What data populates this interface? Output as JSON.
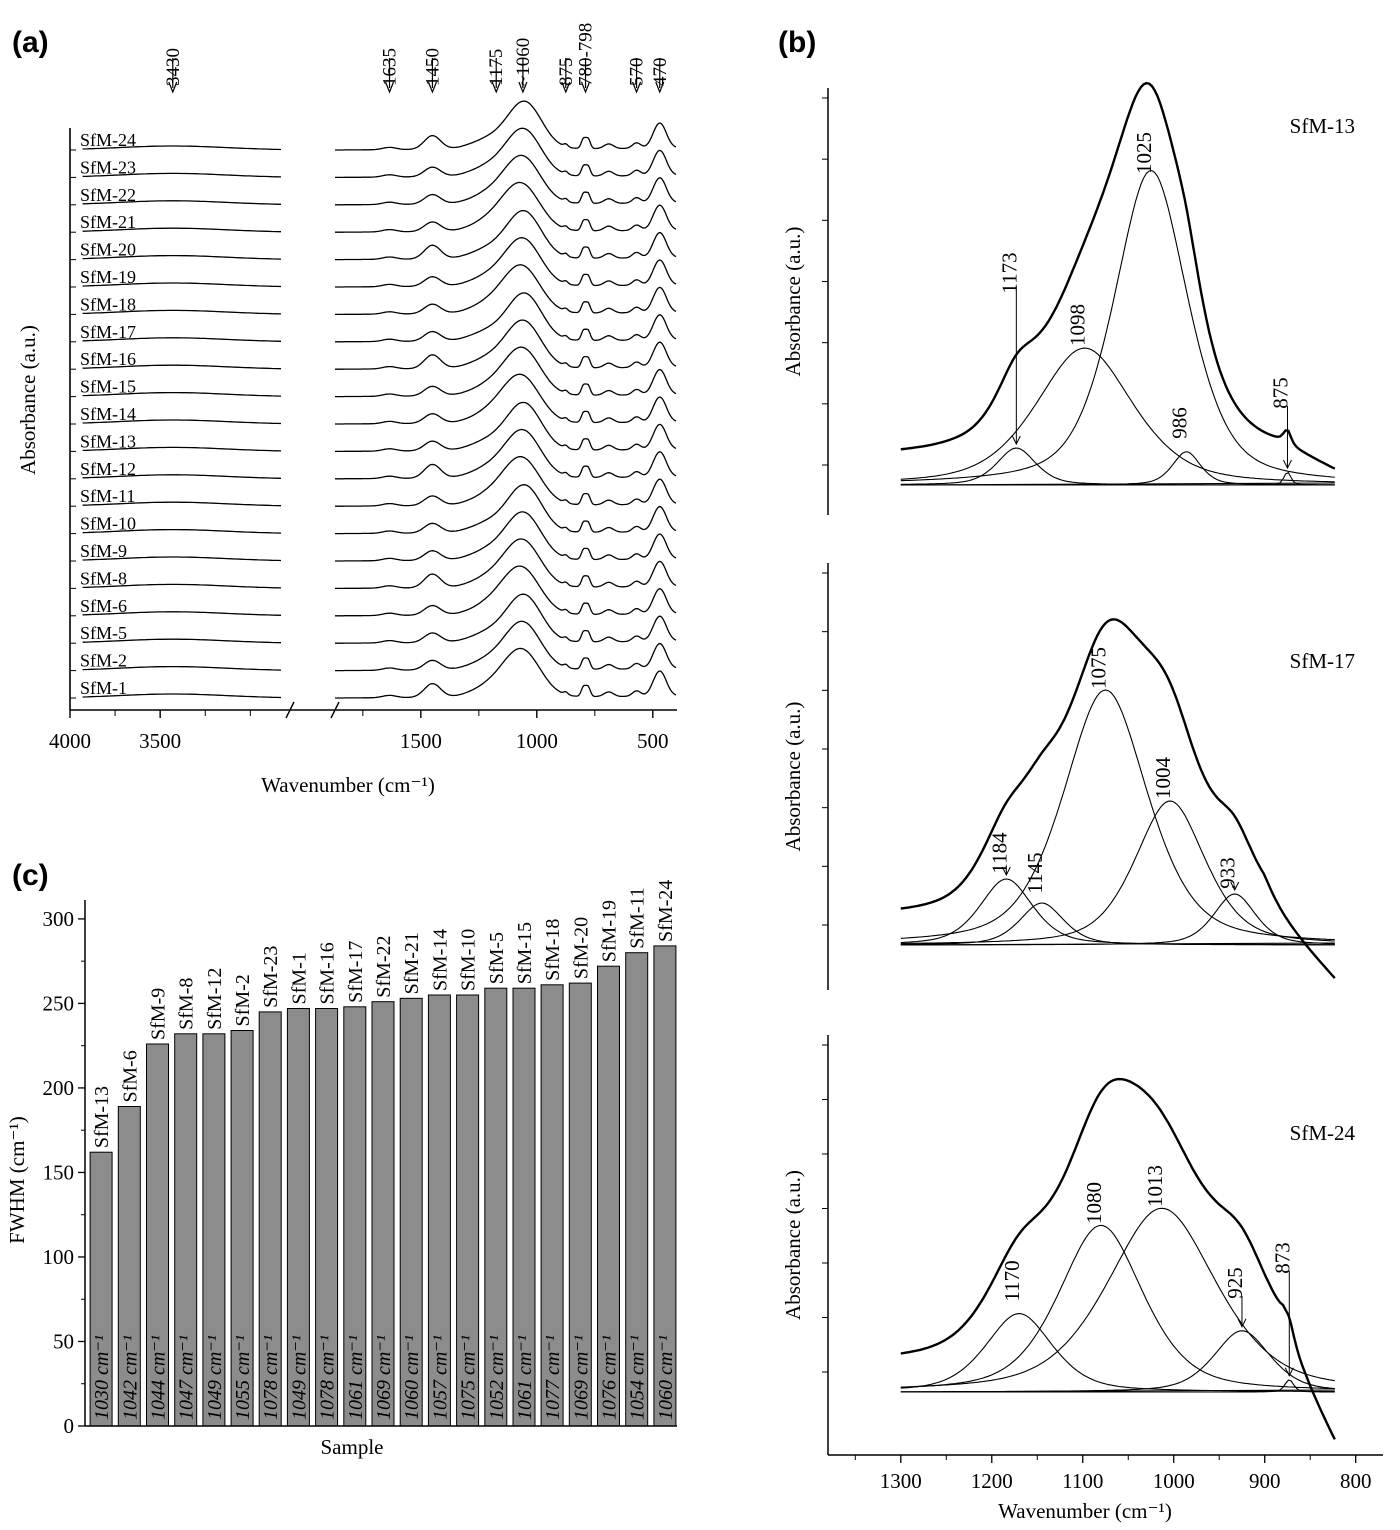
{
  "panels": [
    {
      "label": "(a)",
      "type": "line",
      "xlabel": "Wavenumber (cm⁻¹)",
      "ylabel": "Absorbance (a.u.)",
      "x_ticks": [
        "4000",
        "3500",
        "1500",
        "1000",
        "500"
      ],
      "peak_markers": [
        "3430",
        "1635",
        "1450",
        "1175",
        "~1060",
        "875",
        "780-798",
        "570",
        "470"
      ],
      "samples": [
        "SfM-24",
        "SfM-23",
        "SfM-22",
        "SfM-21",
        "SfM-20",
        "SfM-19",
        "SfM-18",
        "SfM-17",
        "SfM-16",
        "SfM-15",
        "SfM-14",
        "SfM-13",
        "SfM-12",
        "SfM-11",
        "SfM-10",
        "SfM-9",
        "SfM-8",
        "SfM-6",
        "SfM-5",
        "SfM-2",
        "SfM-1"
      ]
    },
    {
      "label": "(b)",
      "type": "line",
      "xlabel": "Wavenumber  (cm⁻¹)",
      "x_ticks": [
        "1300",
        "1200",
        "1100",
        "1000",
        "900",
        "800"
      ],
      "xlim": [
        1380,
        770
      ],
      "subplots": [
        {
          "name": "SfM-13",
          "ylabel": "Absorbance (a.u.)",
          "components": [
            1173,
            1098,
            1025,
            986,
            875
          ]
        },
        {
          "name": "SfM-17",
          "ylabel": "Absorbance (a.u.)",
          "components": [
            1184,
            1145,
            1075,
            1004,
            933
          ]
        },
        {
          "name": "SfM-24",
          "ylabel": "Absorbance (a.u.)",
          "components": [
            1170,
            1080,
            1013,
            925,
            873
          ]
        }
      ]
    }
  ],
  "chart_data": {
    "label": "(c)",
    "type": "bar",
    "xlabel": "Sample",
    "ylabel": "FWHM  (cm⁻¹)",
    "ylim": [
      0,
      310
    ],
    "y_ticks": [
      0,
      50,
      100,
      150,
      200,
      250,
      300
    ],
    "categories": [
      "SfM-13",
      "SfM-6",
      "SfM-9",
      "SfM-8",
      "SfM-12",
      "SfM-2",
      "SfM-23",
      "SfM-1",
      "SfM-16",
      "SfM-17",
      "SfM-22",
      "SfM-21",
      "SfM-14",
      "SfM-10",
      "SfM-5",
      "SfM-15",
      "SfM-18",
      "SfM-20",
      "SfM-19",
      "SfM-11",
      "SfM-24"
    ],
    "values": [
      162,
      189,
      226,
      232,
      232,
      234,
      245,
      247,
      247,
      248,
      251,
      253,
      255,
      255,
      259,
      259,
      261,
      262,
      272,
      280,
      284
    ],
    "bar_annotations": [
      "1030 cm⁻¹",
      "1042 cm⁻¹",
      "1044 cm⁻¹",
      "1047 cm⁻¹",
      "1049 cm⁻¹",
      "1055 cm⁻¹",
      "1078 cm⁻¹",
      "1049 cm⁻¹",
      "1078 cm⁻¹",
      "1061 cm⁻¹",
      "1069 cm⁻¹",
      "1060 cm⁻¹",
      "1057 cm⁻¹",
      "1075 cm⁻¹",
      "1052 cm⁻¹",
      "1061 cm⁻¹",
      "1077 cm⁻¹",
      "1069 cm⁻¹",
      "1076 cm⁻¹",
      "1054 cm⁻¹",
      "1060 cm⁻¹"
    ],
    "colors": {
      "bar": "#8c8c8c",
      "stroke": "#000000"
    }
  }
}
